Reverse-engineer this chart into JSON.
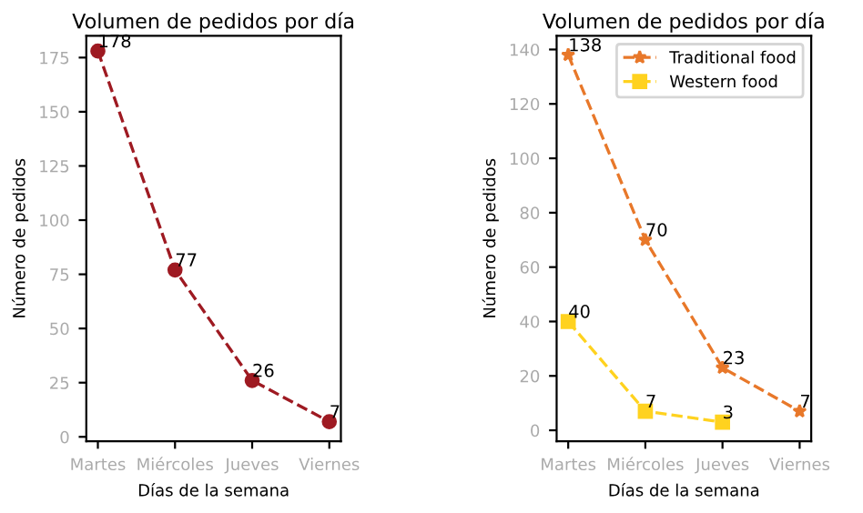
{
  "chart_data": [
    {
      "type": "line",
      "title": "Volumen de pedidos por día",
      "xlabel": "Días de la semana",
      "ylabel": "Número de pedidos",
      "categories": [
        "Martes",
        "Miércoles",
        "Jueves",
        "Viernes"
      ],
      "series": [
        {
          "color": "#9e1a22",
          "values": [
            178,
            77,
            26,
            7
          ],
          "marker": "circle"
        }
      ],
      "ylim": [
        -2,
        185
      ],
      "yticks": [
        0,
        25,
        50,
        75,
        100,
        125,
        150,
        175
      ],
      "line_style": "dashed",
      "data_labels": true,
      "grid": false,
      "legend": false
    },
    {
      "type": "line",
      "title": "Volumen de pedidos por día",
      "xlabel": "Días de la semana",
      "ylabel": "Número de pedidos",
      "categories": [
        "Martes",
        "Miércoles",
        "Jueves",
        "Viernes"
      ],
      "series": [
        {
          "name": "Traditional food",
          "color": "#e8782a",
          "values": [
            138,
            70,
            23,
            7
          ],
          "marker": "star"
        },
        {
          "name": "Western food",
          "color": "#ffd21f",
          "values": [
            40,
            7,
            3,
            null
          ],
          "marker": "square"
        }
      ],
      "ylim": [
        -4,
        145
      ],
      "yticks": [
        0,
        20,
        40,
        60,
        80,
        100,
        120,
        140
      ],
      "line_style": "dashed",
      "data_labels": true,
      "grid": false,
      "legend": "top right"
    }
  ]
}
